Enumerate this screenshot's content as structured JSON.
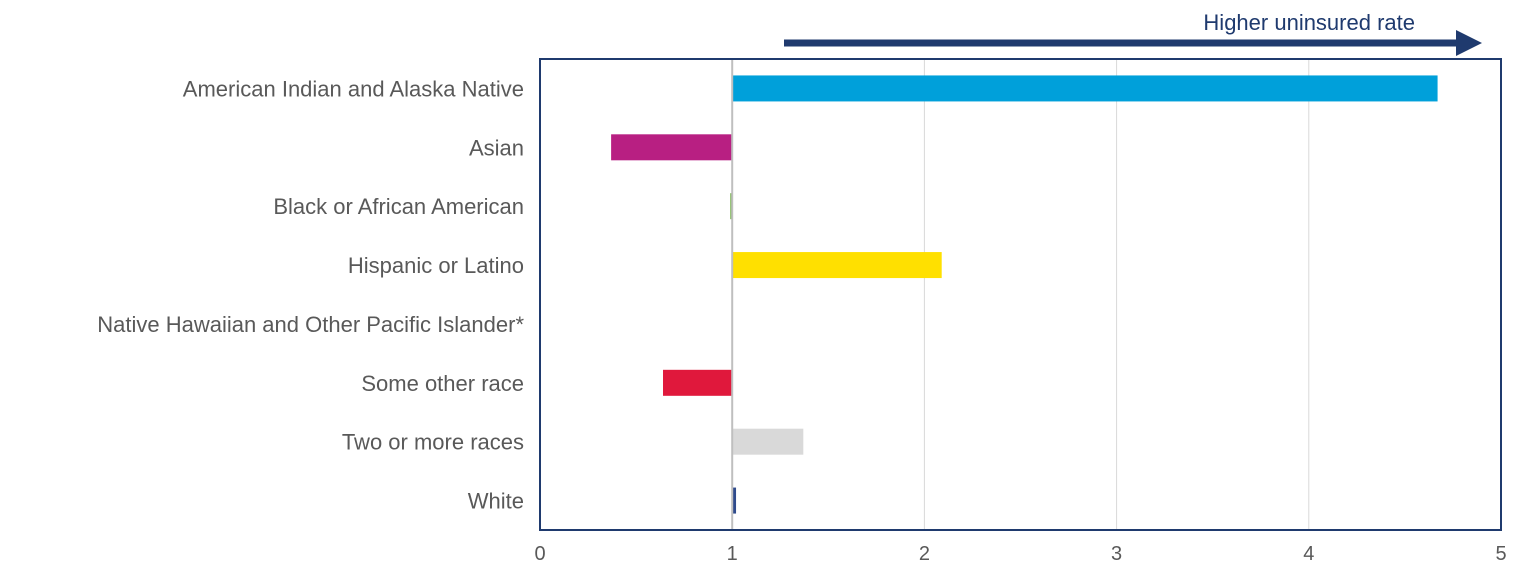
{
  "chart_data": {
    "type": "bar",
    "orientation": "horizontal",
    "baseline": 1,
    "categories": [
      "American Indian and Alaska Native",
      "Asian",
      "Black or African American",
      "Hispanic or Latino",
      "Native Hawaiian and Other Pacific Islander*",
      "Some other race",
      "Two or more races",
      "White"
    ],
    "values": [
      4.67,
      0.37,
      0.99,
      2.09,
      1.0,
      0.64,
      1.37,
      1.02
    ],
    "colors": [
      "#00A0DA",
      "#B81F82",
      "#70AD47",
      "#FFE000",
      "#FFFFFF",
      "#E0183C",
      "#D9D9D9",
      "#2F4B8C"
    ],
    "xlim": [
      0,
      5
    ],
    "xticks": [
      "0",
      "1",
      "2",
      "3",
      "4",
      "5"
    ],
    "annotation": "Higher uninsured rate",
    "grid": "vertical"
  }
}
